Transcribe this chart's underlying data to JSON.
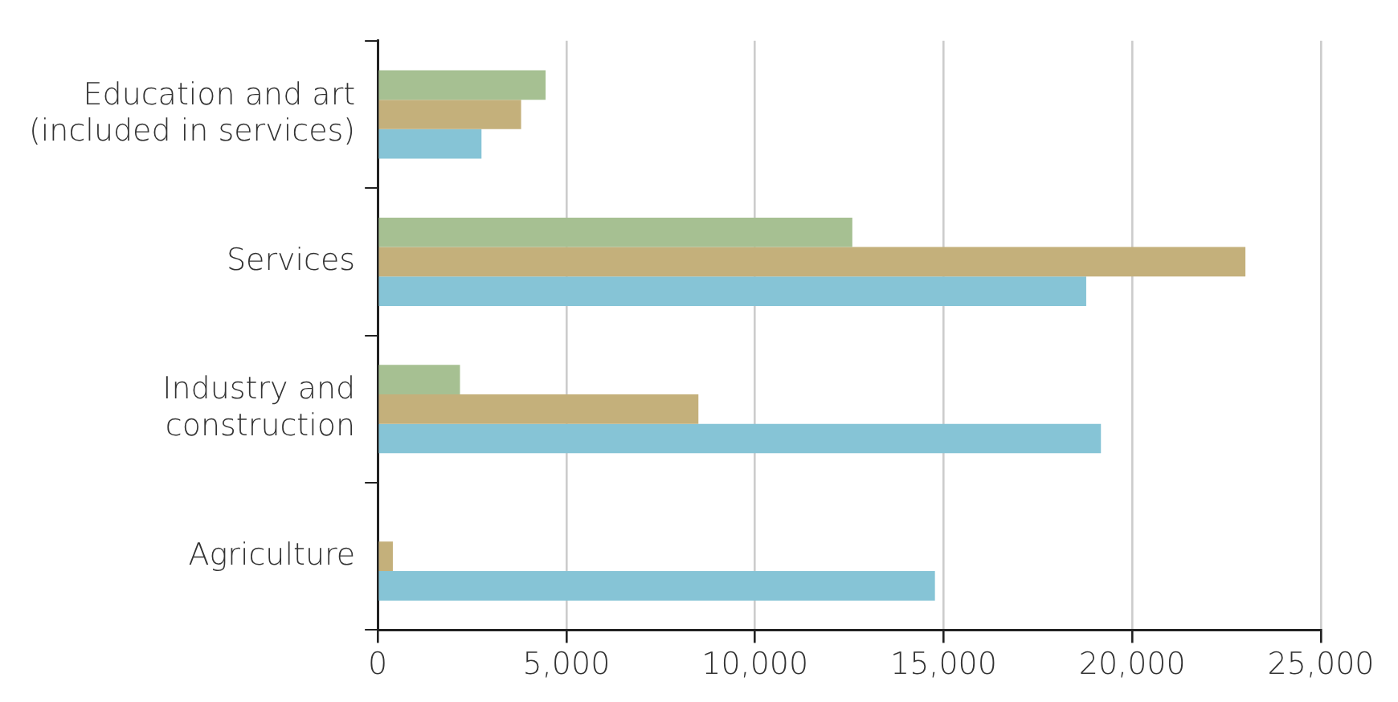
{
  "chart_data": {
    "type": "bar",
    "orientation": "horizontal",
    "categories": [
      "Education and art (included in services)",
      "Services",
      "Industry and construction",
      "Agriculture"
    ],
    "series": [
      {
        "color": "#a6c092",
        "values": [
          4450,
          12580,
          2180,
          0
        ]
      },
      {
        "color": "#c4b07b",
        "values": [
          3800,
          23000,
          8500,
          400
        ]
      },
      {
        "color": "#86c4d6",
        "values": [
          2750,
          18780,
          19170,
          14770
        ]
      }
    ],
    "xlim": [
      0,
      25000
    ],
    "xticks": [
      0,
      {
        "value": 5000,
        "label": "5,000"
      },
      {
        "value": 10000,
        "label": "10,000"
      },
      {
        "value": 15000,
        "label": "15,000"
      },
      {
        "value": 20000,
        "label": "20,000"
      },
      {
        "value": 25000,
        "label": "25,000"
      }
    ],
    "grid": "x",
    "legend": false
  }
}
